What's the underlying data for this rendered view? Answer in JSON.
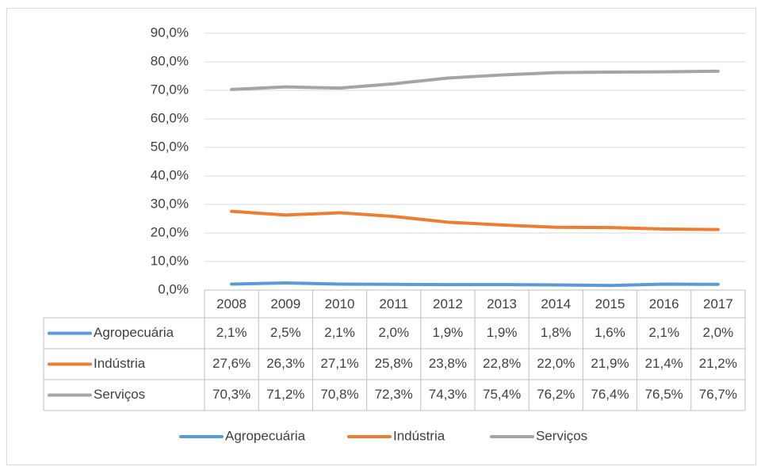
{
  "chart_data": {
    "type": "line",
    "categories": [
      "2008",
      "2009",
      "2010",
      "2011",
      "2012",
      "2013",
      "2014",
      "2015",
      "2016",
      "2017"
    ],
    "series": [
      {
        "name": "Agropecuária",
        "color": "#5b9bd5",
        "values": [
          2.1,
          2.5,
          2.1,
          2.0,
          1.9,
          1.9,
          1.8,
          1.6,
          2.1,
          2.0
        ],
        "value_labels": [
          "2,1%",
          "2,5%",
          "2,1%",
          "2,0%",
          "1,9%",
          "1,9%",
          "1,8%",
          "1,6%",
          "2,1%",
          "2,0%"
        ]
      },
      {
        "name": "Indústria",
        "color": "#ed7d31",
        "values": [
          27.6,
          26.3,
          27.1,
          25.8,
          23.8,
          22.8,
          22.0,
          21.9,
          21.4,
          21.2
        ],
        "value_labels": [
          "27,6%",
          "26,3%",
          "27,1%",
          "25,8%",
          "23,8%",
          "22,8%",
          "22,0%",
          "21,9%",
          "21,4%",
          "21,2%"
        ]
      },
      {
        "name": "Serviços",
        "color": "#a5a5a5",
        "values": [
          70.3,
          71.2,
          70.8,
          72.3,
          74.3,
          75.4,
          76.2,
          76.4,
          76.5,
          76.7
        ],
        "value_labels": [
          "70,3%",
          "71,2%",
          "70,8%",
          "72,3%",
          "74,3%",
          "75,4%",
          "76,2%",
          "76,4%",
          "76,5%",
          "76,7%"
        ]
      }
    ],
    "ylim": [
      0,
      90
    ],
    "yticks": [
      {
        "value": 0,
        "label": "0,0%"
      },
      {
        "value": 10,
        "label": "10,0%"
      },
      {
        "value": 20,
        "label": "20,0%"
      },
      {
        "value": 30,
        "label": "30,0%"
      },
      {
        "value": 40,
        "label": "40,0%"
      },
      {
        "value": 50,
        "label": "50,0%"
      },
      {
        "value": 60,
        "label": "60,0%"
      },
      {
        "value": 70,
        "label": "70,0%"
      },
      {
        "value": 80,
        "label": "80,0%"
      },
      {
        "value": 90,
        "label": "90,0%"
      }
    ],
    "grid": true,
    "legend": "bottom"
  }
}
